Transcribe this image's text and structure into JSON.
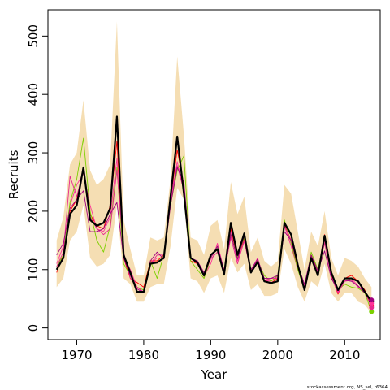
{
  "chart_data": {
    "type": "line",
    "xlabel": "Year",
    "ylabel": "Recruits",
    "xlim": [
      1965.7,
      2015.3
    ],
    "ylim": [
      -20,
      545
    ],
    "xticks": [
      1970,
      1980,
      1990,
      2000,
      2010
    ],
    "yticks": [
      0,
      100,
      200,
      300,
      400,
      500
    ],
    "watermark": "stockassessment.org, NS_sel, r6364",
    "band": {
      "color": "#f5deb3",
      "x": [
        1967,
        1968,
        1969,
        1970,
        1971,
        1972,
        1973,
        1974,
        1975,
        1976,
        1977,
        1978,
        1979,
        1980,
        1981,
        1982,
        1983,
        1984,
        1985,
        1986,
        1987,
        1988,
        1989,
        1990,
        1991,
        1992,
        1993,
        1994,
        1995,
        1996,
        1997,
        1998,
        1999,
        2000,
        2001,
        2002,
        2003,
        2004,
        2005,
        2006,
        2007,
        2008,
        2009,
        2010,
        2011,
        2012,
        2013,
        2014
      ],
      "lower": [
        70,
        85,
        150,
        165,
        210,
        120,
        105,
        110,
        125,
        210,
        85,
        75,
        45,
        45,
        70,
        75,
        75,
        140,
        240,
        220,
        85,
        80,
        60,
        85,
        90,
        60,
        120,
        95,
        110,
        65,
        75,
        55,
        55,
        60,
        135,
        110,
        70,
        45,
        80,
        70,
        110,
        60,
        45,
        60,
        60,
        45,
        40,
        25
      ],
      "upper": [
        150,
        190,
        280,
        300,
        390,
        270,
        245,
        255,
        280,
        525,
        185,
        135,
        90,
        90,
        155,
        150,
        155,
        255,
        465,
        330,
        155,
        150,
        125,
        175,
        185,
        135,
        250,
        195,
        225,
        130,
        155,
        115,
        105,
        115,
        245,
        230,
        165,
        100,
        165,
        140,
        200,
        120,
        90,
        120,
        115,
        105,
        85,
        70
      ]
    },
    "series": [
      {
        "color": "#000000",
        "values": [
          100,
          120,
          195,
          210,
          275,
          185,
          175,
          180,
          205,
          362,
          125,
          95,
          62,
          62,
          110,
          112,
          120,
          225,
          328,
          230,
          120,
          112,
          90,
          125,
          135,
          92,
          180,
          125,
          162,
          95,
          113,
          80,
          77,
          80,
          180,
          160,
          108,
          65,
          120,
          90,
          158,
          95,
          65,
          85,
          85,
          80,
          62,
          45
        ]
      },
      {
        "color": "#ff0000",
        "values": [
          95,
          125,
          200,
          220,
          270,
          195,
          175,
          170,
          210,
          320,
          120,
          85,
          78,
          70,
          115,
          115,
          125,
          220,
          305,
          245,
          115,
          110,
          90,
          125,
          135,
          98,
          170,
          120,
          152,
          98,
          115,
          82,
          77,
          85,
          178,
          150,
          102,
          70,
          125,
          95,
          160,
          90,
          58,
          85,
          90,
          80,
          65,
          38
        ]
      },
      {
        "color": "#ff3399",
        "values": [
          110,
          140,
          210,
          245,
          265,
          210,
          170,
          165,
          190,
          290,
          120,
          100,
          70,
          60,
          110,
          120,
          120,
          215,
          285,
          235,
          118,
          115,
          88,
          110,
          145,
          98,
          165,
          115,
          148,
          98,
          120,
          82,
          80,
          88,
          175,
          140,
          100,
          72,
          120,
          95,
          150,
          88,
          62,
          80,
          85,
          72,
          62,
          42
        ]
      },
      {
        "color": "#7cd000",
        "values": [
          105,
          125,
          215,
          255,
          325,
          200,
          150,
          130,
          175,
          275,
          110,
          90,
          70,
          65,
          115,
          85,
          125,
          210,
          270,
          295,
          115,
          100,
          85,
          120,
          140,
          90,
          160,
          120,
          155,
          96,
          115,
          90,
          80,
          90,
          185,
          145,
          100,
          65,
          130,
          100,
          155,
          85,
          65,
          75,
          70,
          68,
          60,
          28
        ]
      },
      {
        "color": "#e8298f",
        "values": [
          105,
          130,
          260,
          225,
          270,
          190,
          170,
          160,
          170,
          270,
          130,
          85,
          70,
          62,
          110,
          125,
          125,
          225,
          278,
          235,
          120,
          110,
          92,
          118,
          130,
          95,
          155,
          110,
          150,
          95,
          118,
          82,
          85,
          85,
          175,
          150,
          105,
          68,
          118,
          98,
          145,
          88,
          60,
          80,
          82,
          70,
          62,
          35
        ]
      },
      {
        "color": "#a0007f",
        "values": [
          125,
          145,
          205,
          220,
          235,
          165,
          165,
          170,
          195,
          215,
          120,
          90,
          67,
          60,
          115,
          130,
          118,
          210,
          275,
          250,
          120,
          115,
          95,
          120,
          140,
          98,
          160,
          118,
          158,
          100,
          118,
          85,
          85,
          90,
          165,
          150,
          108,
          75,
          125,
          98,
          132,
          85,
          65,
          82,
          80,
          72,
          60,
          48
        ]
      }
    ],
    "endpoints": {
      "x": 2014,
      "values": [
        45,
        38,
        42,
        28,
        35,
        48
      ]
    }
  }
}
